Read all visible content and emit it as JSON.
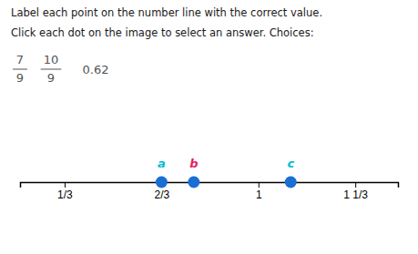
{
  "chart_data": {
    "type": "number_line",
    "title": "Label each point on the number line with the correct value.",
    "subtitle": "Click each dot on the image to select an answer. Choices:",
    "choices": [
      {
        "numerator": "7",
        "denominator": "9"
      },
      {
        "numerator": "10",
        "denominator": "9"
      },
      {
        "text": "0.62"
      }
    ],
    "x": [
      0.6667,
      0.7778,
      1.1111
    ],
    "color": "#1a6fd4",
    "annotations": [
      {
        "text": "a",
        "x": 0.6667,
        "color": "#00bcd4"
      },
      {
        "text": "b",
        "x": 0.7778,
        "color": "#e91e63"
      },
      {
        "text": "c",
        "x": 1.1111,
        "color": "#00bcd4"
      }
    ],
    "xlim": [
      0.18,
      1.48
    ],
    "xticks": [
      {
        "value": 0.3333,
        "label": "1/3"
      },
      {
        "value": 0.6667,
        "label": "2/3"
      },
      1.0,
      {
        "value": 1.3333,
        "label": "1 1/3"
      }
    ]
  }
}
